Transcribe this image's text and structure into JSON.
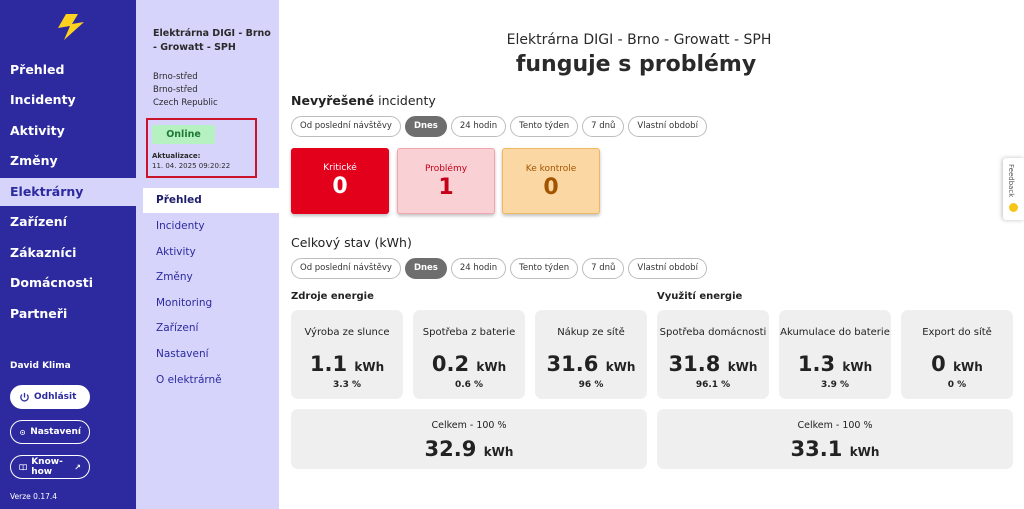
{
  "nav": {
    "items": [
      "Přehled",
      "Incidenty",
      "Aktivity",
      "Změny",
      "Elektrárny",
      "Zařízení",
      "Zákazníci",
      "Domácnosti",
      "Partneři"
    ],
    "user": "David Klima",
    "logout": "Odhlásit",
    "settings": "Nastavení",
    "knowhow": "Know-how",
    "version": "Verze 0.17.4"
  },
  "plant": {
    "name": "Elektrárna DIGI - Brno - Growatt - SPH",
    "addr1": "Brno-střed",
    "addr2": "Brno-střed",
    "addr3": "Czech Republic",
    "status": "Online",
    "updated_label": "Aktualizace:",
    "updated_value": "11. 04. 2025 09:20:22"
  },
  "subnav": [
    "Přehled",
    "Incidenty",
    "Aktivity",
    "Změny",
    "Monitoring",
    "Zařízení",
    "Nastavení",
    "O elektrárně"
  ],
  "header": {
    "title": "Elektrárna DIGI - Brno - Growatt - SPH",
    "status": "funguje s problémy"
  },
  "incidents": {
    "title_bold": "Nevyřešené",
    "title_rest": " incidenty",
    "filters": [
      "Od poslední návštěvy",
      "Dnes",
      "24 hodin",
      "Tento týden",
      "7 dnů",
      "Vlastní období"
    ],
    "critical_label": "Kritické",
    "critical_value": "0",
    "problems_label": "Problémy",
    "problems_value": "1",
    "review_label": "Ke kontrole",
    "review_value": "0"
  },
  "energy": {
    "title": "Celkový stav (kWh)",
    "filters": [
      "Od poslední návštěvy",
      "Dnes",
      "24 hodin",
      "Tento týden",
      "7 dnů",
      "Vlastní období"
    ],
    "sources_title": "Zdroje energie",
    "usage_title": "Využití energie",
    "unit": "kWh",
    "cards": [
      {
        "label": "Výroba ze slunce",
        "value": "1.1",
        "pct": "3.3 %"
      },
      {
        "label": "Spotřeba z baterie",
        "value": "0.2",
        "pct": "0.6 %"
      },
      {
        "label": "Nákup ze sítě",
        "value": "31.6",
        "pct": "96 %"
      },
      {
        "label": "Spotřeba domácnosti",
        "value": "31.8",
        "pct": "96.1 %"
      },
      {
        "label": "Akumulace do baterie",
        "value": "1.3",
        "pct": "3.9 %"
      },
      {
        "label": "Export do sítě",
        "value": "0",
        "pct": "0 %"
      }
    ],
    "total_sources_label": "Celkem - 100 %",
    "total_sources_value": "32.9",
    "total_usage_label": "Celkem - 100 %",
    "total_usage_value": "33.1"
  },
  "feedback": "Feedback"
}
